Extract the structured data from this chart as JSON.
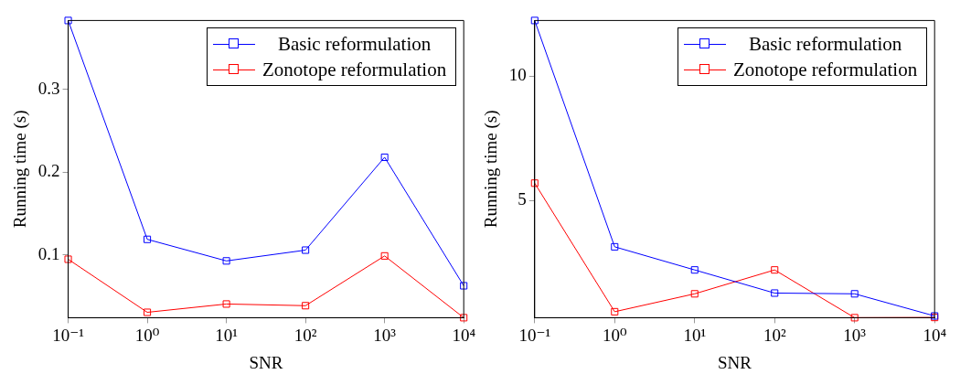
{
  "chart_data": [
    {
      "type": "line",
      "xlabel": "SNR",
      "ylabel": "Running time (s)",
      "log": "x",
      "x": [
        0.1,
        1,
        10,
        100,
        1000,
        10000
      ],
      "xlim": [
        0.1,
        10000
      ],
      "xticks": [
        {
          "value": 0.1,
          "label": "10⁻¹"
        },
        {
          "value": 1,
          "label": "10⁰"
        },
        {
          "value": 10,
          "label": "10¹"
        },
        {
          "value": 100,
          "label": "10²"
        },
        {
          "value": 1000,
          "label": "10³"
        },
        {
          "value": 10000,
          "label": "10⁴"
        }
      ],
      "ylim": [
        0.0245,
        0.383
      ],
      "yticks": [
        0.1,
        0.2,
        0.3
      ],
      "grid": false,
      "legend": "top right",
      "marker": "square",
      "line_style": "solid",
      "series": [
        {
          "name": "Basic reformulation",
          "color": "#0000ff",
          "values": [
            0.383,
            0.119,
            0.093,
            0.106,
            0.218,
            0.063
          ]
        },
        {
          "name": "Zonotope reformulation",
          "color": "#ff0000",
          "values": [
            0.095,
            0.031,
            0.041,
            0.039,
            0.099,
            0.0245
          ]
        }
      ]
    },
    {
      "type": "line",
      "xlabel": "SNR",
      "ylabel": "Running time (s)",
      "log": "x",
      "x": [
        0.1,
        1,
        10,
        100,
        1000,
        10000
      ],
      "xlim": [
        0.1,
        10000
      ],
      "xticks": [
        {
          "value": 0.1,
          "label": "10⁻¹"
        },
        {
          "value": 1,
          "label": "10⁰"
        },
        {
          "value": 10,
          "label": "10¹"
        },
        {
          "value": 100,
          "label": "10²"
        },
        {
          "value": 1000,
          "label": "10³"
        },
        {
          "value": 10000,
          "label": "10⁴"
        }
      ],
      "ylim": [
        0.29,
        12.24
      ],
      "yticks": [
        5,
        10
      ],
      "grid": false,
      "legend": "top right",
      "marker": "square",
      "line_style": "solid",
      "series": [
        {
          "name": "Basic reformulation",
          "color": "#0000ff",
          "values": [
            12.24,
            3.14,
            2.21,
            1.28,
            1.25,
            0.36
          ]
        },
        {
          "name": "Zonotope reformulation",
          "color": "#ff0000",
          "values": [
            5.7,
            0.53,
            1.25,
            2.21,
            0.29,
            0.3
          ]
        }
      ]
    }
  ]
}
